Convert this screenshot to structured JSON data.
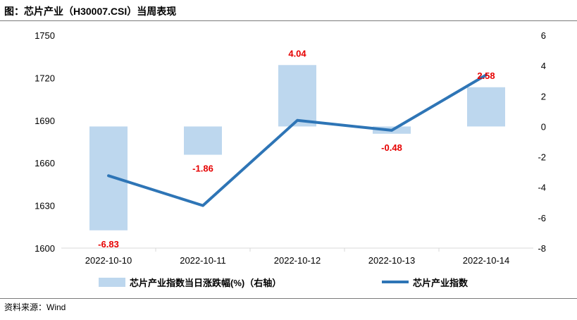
{
  "title": "图：芯片产业（H30007.CSI）当周表现",
  "source": "资料来源：Wind",
  "colors": {
    "bar": "#bdd7ee",
    "line": "#2e75b6",
    "label": "#e60000"
  },
  "chart_data": {
    "type": "bar+line",
    "categories": [
      "2022-10-10",
      "2022-10-11",
      "2022-10-12",
      "2022-10-13",
      "2022-10-14"
    ],
    "series": [
      {
        "name": "芯片产业指数当日涨跌幅(%)（右轴）",
        "type": "bar",
        "axis": "right",
        "values": [
          -6.83,
          -1.86,
          4.04,
          -0.48,
          2.58
        ],
        "labels": [
          "-6.83",
          "-1.86",
          "4.04",
          "-0.48",
          "2.58"
        ]
      },
      {
        "name": "芯片产业指数",
        "type": "line",
        "axis": "left",
        "values": [
          1651,
          1630,
          1690,
          1683,
          1722
        ]
      }
    ],
    "y_left": {
      "ylim": [
        1600,
        1750
      ],
      "ticks": [
        "1600",
        "1630",
        "1660",
        "1690",
        "1720",
        "1750"
      ]
    },
    "y_right": {
      "ylim": [
        -8,
        6
      ],
      "ticks": [
        "-8",
        "-6",
        "-4",
        "-2",
        "0",
        "2",
        "4",
        "6"
      ]
    },
    "legend_position": "bottom"
  }
}
